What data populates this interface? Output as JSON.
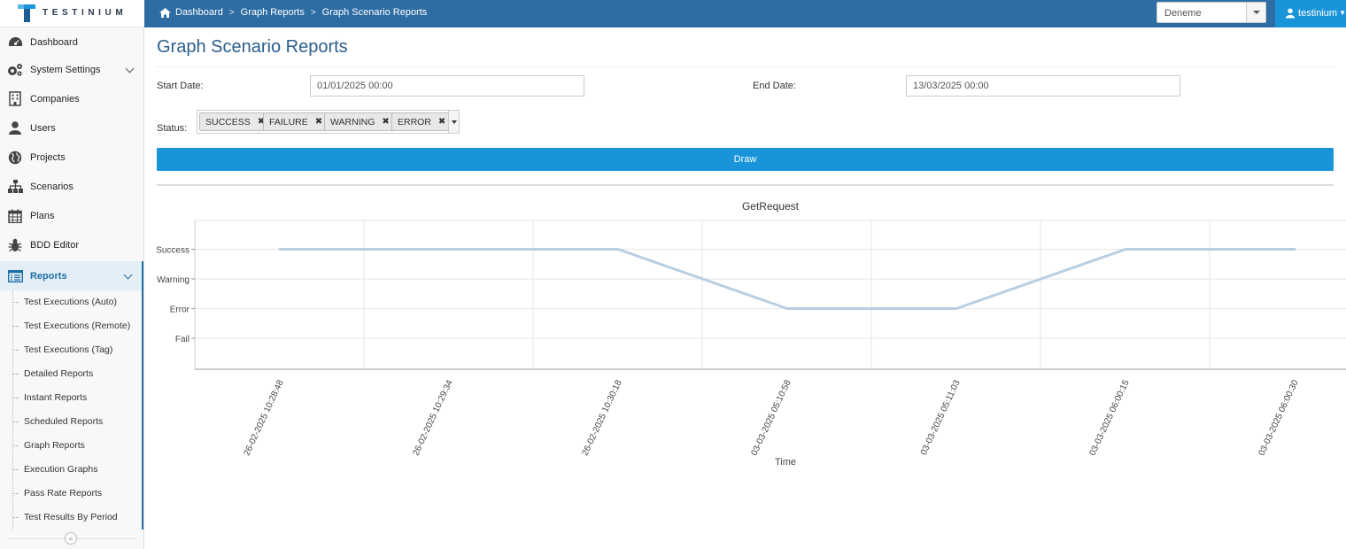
{
  "brand": {
    "name": "TESTINIUM"
  },
  "breadcrumb": [
    "Dashboard",
    "Graph Reports",
    "Graph Scenario Reports"
  ],
  "project_select": {
    "value": "Deneme"
  },
  "user": {
    "name": "testinium"
  },
  "sidebar": {
    "items": [
      {
        "label": "Dashboard",
        "icon": "dashboard-icon"
      },
      {
        "label": "System Settings",
        "icon": "gears-icon"
      },
      {
        "label": "Companies",
        "icon": "building-icon"
      },
      {
        "label": "Users",
        "icon": "user-icon"
      },
      {
        "label": "Projects",
        "icon": "globe-icon"
      },
      {
        "label": "Scenarios",
        "icon": "sitemap-icon"
      },
      {
        "label": "Plans",
        "icon": "calendar-icon"
      },
      {
        "label": "BDD Editor",
        "icon": "bug-icon"
      },
      {
        "label": "Reports",
        "icon": "list-icon"
      }
    ],
    "reports_submenu": [
      "Test Executions (Auto)",
      "Test Executions (Remote)",
      "Test Executions (Tag)",
      "Detailed Reports",
      "Instant Reports",
      "Scheduled Reports",
      "Graph Reports",
      "Execution Graphs",
      "Pass Rate Reports",
      "Test Results By Period"
    ]
  },
  "page": {
    "title": "Graph Scenario Reports",
    "start_date_label": "Start Date:",
    "start_date_value": "01/01/2025 00:00",
    "end_date_label": "End Date:",
    "end_date_value": "13/03/2025 00:00",
    "status_label": "Status:",
    "status_tags": [
      "SUCCESS",
      "FAILURE",
      "WARNING",
      "ERROR"
    ],
    "draw_label": "Draw"
  },
  "colors": {
    "navbar": "#2e6da4",
    "accent": "#1a94d8",
    "line": "#b5cde0"
  },
  "chart_data": {
    "type": "line",
    "title": "GetRequest",
    "xlabel": "Time",
    "ylabel": "",
    "y_categories": [
      "Fail",
      "Error",
      "Warning",
      "Success"
    ],
    "x": [
      "26-02-2025 10:28:48",
      "26-02-2025 10:29:34",
      "26-02-2025 10:30:18",
      "03-03-2025 05:10:58",
      "03-03-2025 05:11:03",
      "03-03-2025 06:00:15",
      "03-03-2025 06:00:30"
    ],
    "series": [
      {
        "values": [
          "Success",
          "Success",
          "Success",
          "Error",
          "Error",
          "Success",
          "Success"
        ]
      }
    ],
    "grid": true,
    "legend": "none"
  }
}
